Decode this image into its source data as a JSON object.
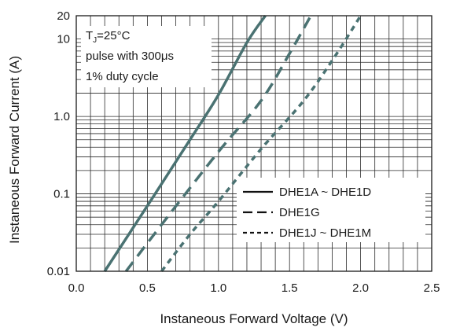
{
  "chart_data": {
    "type": "line",
    "title": "",
    "xlabel": "Instaneous Forward Voltage (V)",
    "ylabel": "Instaneous Forward Current (A)",
    "xlim": [
      0.0,
      2.5
    ],
    "ylim": [
      0.01,
      20
    ],
    "y_scale": "log",
    "grid": true,
    "x_ticks": [
      0.0,
      0.5,
      1.0,
      1.5,
      2.0,
      2.5
    ],
    "x_tick_labels": [
      "0.0",
      "0.5",
      "1.0",
      "1.5",
      "2.0",
      "2.5"
    ],
    "y_ticks": [
      0.01,
      0.1,
      1.0,
      10,
      20
    ],
    "y_tick_labels": [
      "0.01",
      "0.1",
      "1.0",
      "10",
      "20"
    ],
    "annotation": {
      "tj_main": "T",
      "tj_sub": "J",
      "tj_rest": "=25°C",
      "line2": "pulse with 300μs",
      "line3": "1% duty cycle"
    },
    "legend_position": "lower-right",
    "series": [
      {
        "name": "DHE1A ~ DHE1D",
        "style": "solid",
        "color": "#4a7272",
        "x": [
          0.2,
          0.5,
          0.8,
          1.0,
          1.2,
          1.33
        ],
        "y": [
          0.01,
          0.07,
          0.5,
          1.9,
          9.0,
          20
        ]
      },
      {
        "name": "DHE1G",
        "style": "dashed",
        "color": "#4a7272",
        "x": [
          0.35,
          0.6,
          1.0,
          1.3,
          1.5,
          1.65
        ],
        "y": [
          0.01,
          0.04,
          0.35,
          1.6,
          6.5,
          20
        ]
      },
      {
        "name": "DHE1J ~ DHE1M",
        "style": "dotted",
        "color": "#4a7272",
        "x": [
          0.6,
          0.8,
          1.0,
          1.3,
          1.6,
          1.82,
          2.0
        ],
        "y": [
          0.01,
          0.03,
          0.08,
          0.38,
          1.6,
          6.0,
          20
        ]
      }
    ]
  }
}
